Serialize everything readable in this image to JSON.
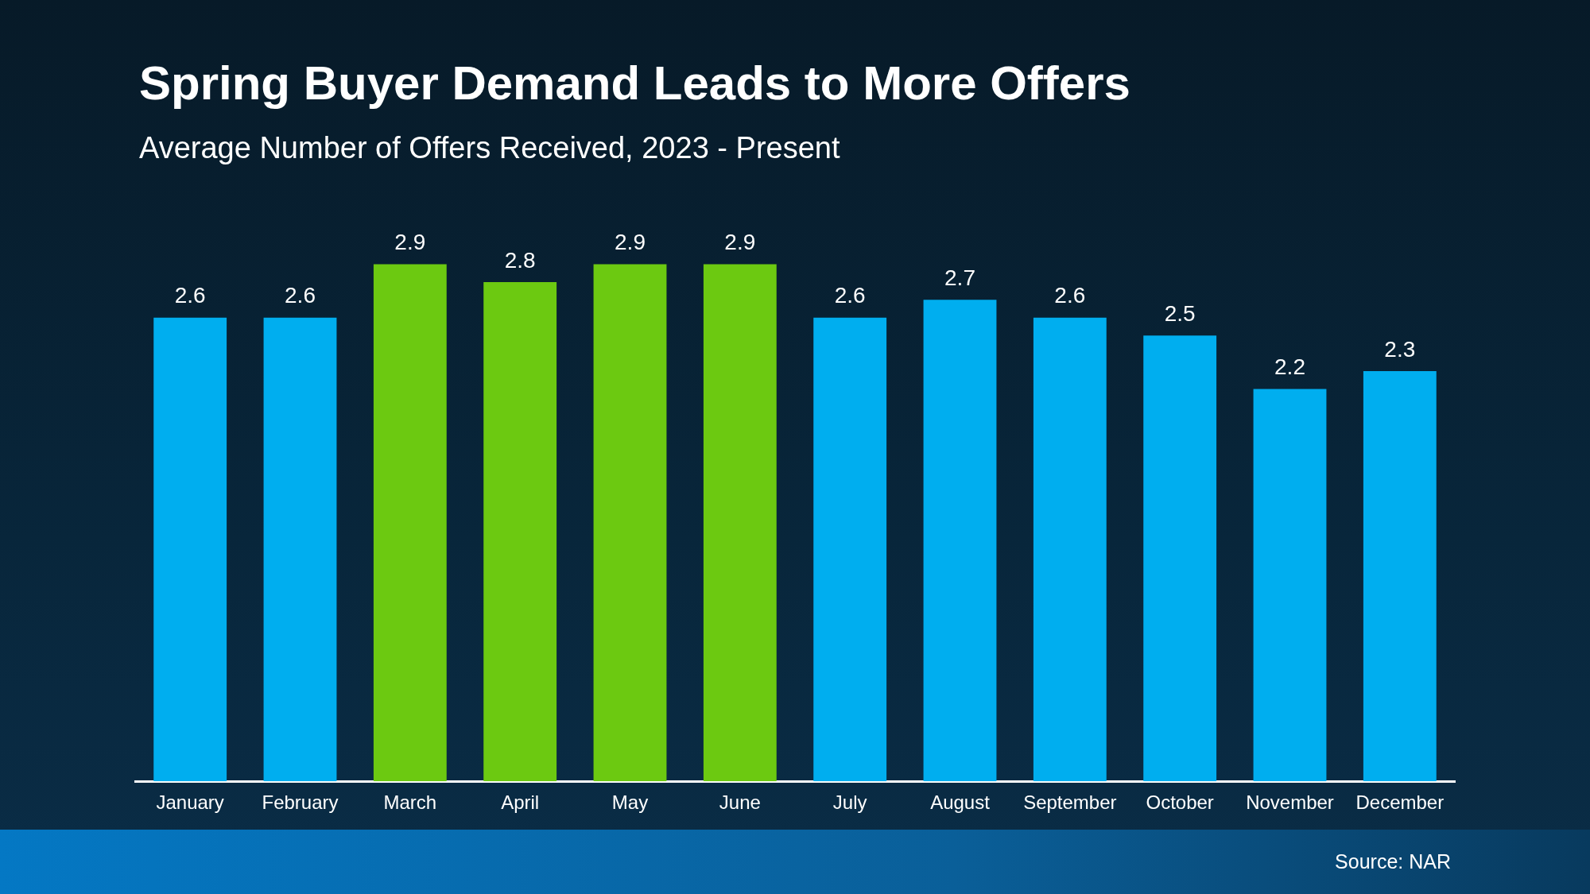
{
  "chart_data": {
    "type": "bar",
    "title": "Spring Buyer Demand Leads to More Offers",
    "subtitle": "Average Number of Offers Received, 2023 - Present",
    "categories": [
      "January",
      "February",
      "March",
      "April",
      "May",
      "June",
      "July",
      "August",
      "September",
      "October",
      "November",
      "December"
    ],
    "values": [
      2.6,
      2.6,
      2.9,
      2.8,
      2.9,
      2.9,
      2.6,
      2.7,
      2.6,
      2.5,
      2.2,
      2.3
    ],
    "colors": [
      "#00aeef",
      "#00aeef",
      "#6cc911",
      "#6cc911",
      "#6cc911",
      "#6cc911",
      "#00aeef",
      "#00aeef",
      "#00aeef",
      "#00aeef",
      "#00aeef",
      "#00aeef"
    ],
    "data_labels": true,
    "annotations": [
      "Source: NAR"
    ]
  }
}
